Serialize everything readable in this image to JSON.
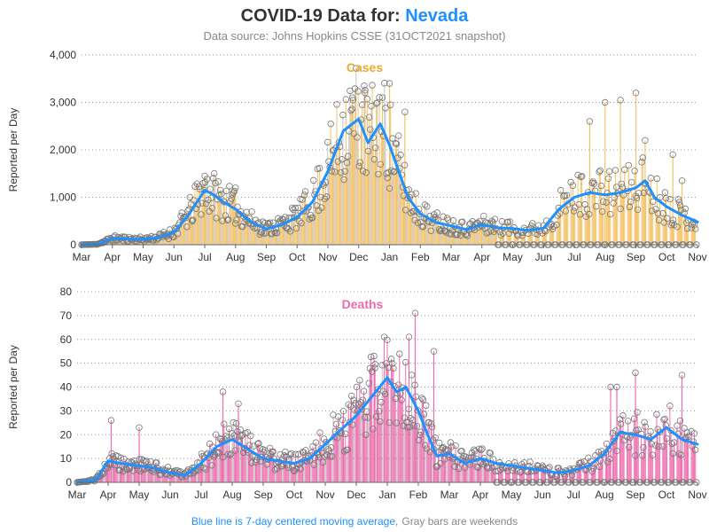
{
  "page": {
    "title_prefix": "COVID-19 Data for: ",
    "title_state": "Nevada",
    "subtitle": "Data source: Johns Hopkins CSSE (31OCT2021 snapshot)",
    "footer_blue": "Blue line is 7-day centered moving average,",
    "footer_gray": "Gray bars are weekends"
  },
  "colors": {
    "title": "#333333",
    "state": "#1e90ff",
    "subtitle": "#888888",
    "cases_bar": "#f5c36b",
    "cases_label": "#f0a830",
    "deaths_bar": "#ef6fb0",
    "deaths_label": "#ee6aa7",
    "moving_avg": "#1e90ff",
    "weekend_bar": "#999999",
    "marker": "#777777",
    "grid": "#999999",
    "axis_text": "#333333"
  },
  "chart_data": [
    {
      "type": "bar",
      "panel": "cases",
      "title": "Cases",
      "ylabel": "Reported per Day",
      "ylim": [
        0,
        4000
      ],
      "yticks": [
        "0",
        "1,000",
        "2,000",
        "3,000",
        "4,000"
      ],
      "ytick_values": [
        0,
        1000,
        2000,
        3000,
        4000
      ],
      "xticks": [
        "Mar",
        "Apr",
        "May",
        "Jun",
        "Jul",
        "Aug",
        "Sep",
        "Oct",
        "Nov",
        "Dec",
        "Jan",
        "Feb",
        "Mar",
        "Apr",
        "May",
        "Jun",
        "Jul",
        "Aug",
        "Sep",
        "Oct",
        "Nov"
      ],
      "grid": "horizontal dotted",
      "series": [
        {
          "name": "Blue line is 7-day centered moving average",
          "style": "line",
          "month_index": [
            0,
            0.5,
            1,
            1.5,
            2,
            2.5,
            3,
            3.5,
            4,
            4.3,
            4.6,
            5,
            5.5,
            6,
            6.5,
            7,
            7.5,
            8,
            8.5,
            9,
            9.3,
            9.7,
            10,
            10.3,
            10.6,
            11,
            11.5,
            12,
            12.5,
            13,
            13.5,
            14,
            14.5,
            15,
            15.5,
            16,
            16.5,
            17,
            17.5,
            18,
            18.3,
            18.6,
            19,
            19.5,
            20
          ],
          "values": [
            0,
            10,
            130,
            120,
            110,
            150,
            260,
            650,
            1150,
            1050,
            900,
            750,
            480,
            330,
            420,
            580,
            900,
            1550,
            2400,
            2650,
            2150,
            2550,
            2100,
            1550,
            1000,
            650,
            470,
            400,
            320,
            420,
            360,
            340,
            300,
            350,
            750,
            1000,
            1100,
            1050,
            1100,
            1200,
            1350,
            1000,
            800,
            620,
            480
          ]
        }
      ],
      "daily_peaks_month_index": [
        3.6,
        4.0,
        5.0,
        8.8,
        9.2,
        10.0,
        10.5,
        16.5,
        17.0,
        17.5,
        18.0,
        18.3,
        19.2,
        19.5
      ],
      "daily_peaks": [
        500,
        1450,
        1200,
        3100,
        3200,
        3400,
        2800,
        2600,
        3000,
        3050,
        3200,
        2200,
        1900,
        1350
      ]
    },
    {
      "type": "bar",
      "panel": "deaths",
      "title": "Deaths",
      "ylabel": "Reported per Day",
      "ylim": [
        0,
        80
      ],
      "yticks": [
        "0",
        "10",
        "20",
        "30",
        "40",
        "50",
        "60",
        "70",
        "80"
      ],
      "ytick_values": [
        0,
        10,
        20,
        30,
        40,
        50,
        60,
        70,
        80
      ],
      "xticks": [
        "Mar",
        "Apr",
        "May",
        "Jun",
        "Jul",
        "Aug",
        "Sep",
        "Oct",
        "Nov",
        "Dec",
        "Jan",
        "Feb",
        "Mar",
        "Apr",
        "May",
        "Jun",
        "Jul",
        "Aug",
        "Sep",
        "Oct",
        "Nov"
      ],
      "grid": "horizontal dotted",
      "series": [
        {
          "name": "Blue line is 7-day centered moving average",
          "style": "line",
          "month_index": [
            0,
            0.6,
            1,
            1.4,
            2,
            2.5,
            3,
            3.5,
            4,
            4.5,
            5,
            5.5,
            6,
            6.5,
            7,
            7.5,
            8,
            8.5,
            9,
            9.5,
            10,
            10.3,
            10.6,
            11,
            11.3,
            11.6,
            12,
            12.5,
            13,
            13.5,
            14,
            14.5,
            15,
            15.5,
            16,
            16.5,
            17,
            17.5,
            18,
            18.5,
            19,
            19.5,
            20
          ],
          "values": [
            0,
            1,
            9,
            8,
            7,
            6,
            4,
            3,
            8,
            15,
            18,
            14,
            10,
            9,
            8,
            10,
            16,
            22,
            28,
            36,
            44,
            38,
            40,
            30,
            20,
            11,
            12,
            8,
            10,
            8,
            7,
            6,
            5,
            4,
            5,
            7,
            12,
            21,
            20,
            18,
            23,
            18,
            16
          ]
        }
      ],
      "daily_peaks_month_index": [
        1.1,
        2.0,
        4.7,
        5.2,
        9.6,
        10.7,
        10.9,
        11.5,
        17.2,
        17.4,
        18.0,
        19.5
      ],
      "daily_peaks": [
        26,
        23,
        38,
        33,
        48,
        61,
        71,
        55,
        40,
        40,
        46,
        45
      ]
    }
  ]
}
